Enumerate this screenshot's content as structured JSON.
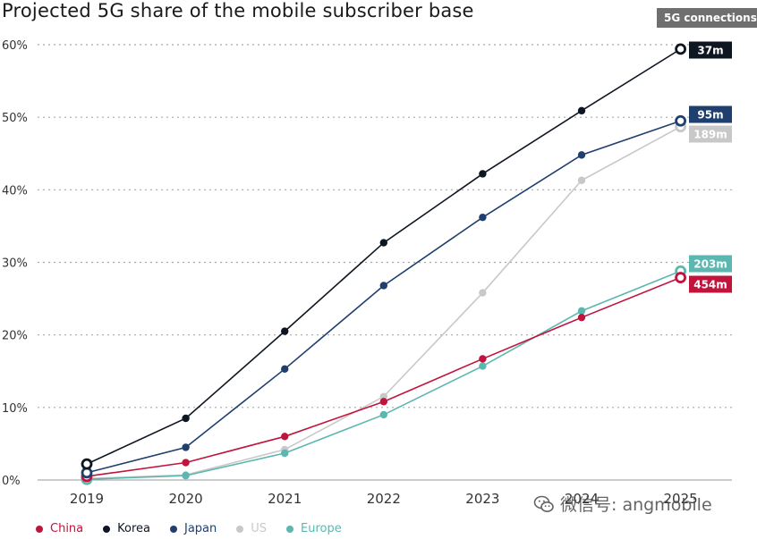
{
  "chart_data": {
    "type": "line",
    "title": "Projected 5G share of the mobile subscriber base",
    "badge": "5G connections",
    "x": [
      "2019",
      "2020",
      "2021",
      "2022",
      "2023",
      "2024",
      "2025"
    ],
    "y_ticks": [
      "0%",
      "10%",
      "20%",
      "30%",
      "40%",
      "50%",
      "60%"
    ],
    "ylim": [
      0,
      60
    ],
    "xlabel": "",
    "ylabel": "",
    "grid": true,
    "legend_position": "bottom-left",
    "series": [
      {
        "name": "US",
        "color": "#c8c8c8",
        "label_text": "#ffffff",
        "values": [
          0.2,
          0.7,
          4.2,
          11.5,
          25.8,
          41.3,
          48.7
        ],
        "end_label": "189m"
      },
      {
        "name": "Europe",
        "color": "#5bb7b0",
        "label_text": "#ffffff",
        "values": [
          0.1,
          0.6,
          3.7,
          9.0,
          15.7,
          23.3,
          28.8
        ],
        "end_label": "203m"
      },
      {
        "name": "China",
        "color": "#c0143c",
        "label_text": "#ffffff",
        "values": [
          0.5,
          2.4,
          6.0,
          10.8,
          16.7,
          22.4,
          27.9
        ],
        "end_label": "454m"
      },
      {
        "name": "Japan",
        "color": "#1f3f6e",
        "label_text": "#ffffff",
        "values": [
          1.0,
          4.5,
          15.3,
          26.8,
          36.2,
          44.8,
          49.5
        ],
        "end_label": "95m"
      },
      {
        "name": "Korea",
        "color": "#0e1622",
        "label_text": "#ffffff",
        "values": [
          2.2,
          8.5,
          20.5,
          32.7,
          42.2,
          50.9,
          59.4
        ],
        "end_label": "37m"
      }
    ],
    "legend_order": [
      "China",
      "Korea",
      "Japan",
      "US",
      "Europe"
    ]
  },
  "watermark": {
    "text": "微信号: angmobile",
    "icon": "wechat-icon"
  }
}
